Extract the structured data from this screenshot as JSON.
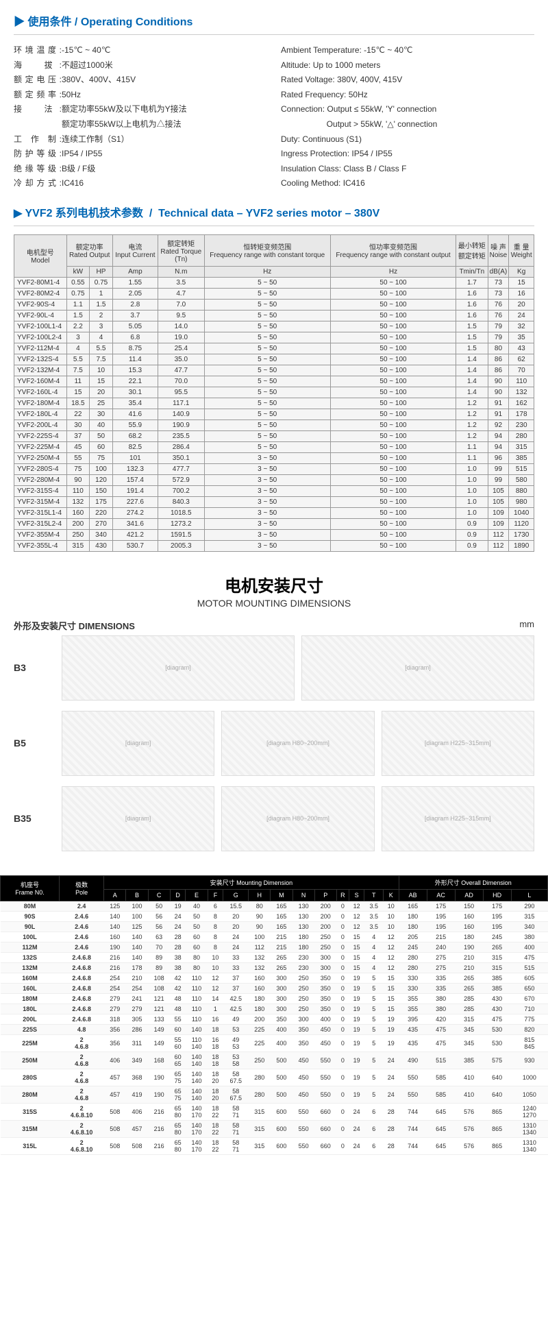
{
  "operating": {
    "title_cn": "使用条件",
    "title_en": "Operating Conditions",
    "rows_cn": [
      {
        "label": "环境温度:",
        "value": "-15℃ ~ 40℃"
      },
      {
        "label": "海　拔:",
        "value": "不超过1000米"
      },
      {
        "label": "额定电压:",
        "value": "380V、400V、415V"
      },
      {
        "label": "额定频率:",
        "value": "50Hz"
      },
      {
        "label": "接　法:",
        "value": "额定功率55kW及以下电机为Y接法"
      },
      {
        "label": "",
        "value": "额定功率55kW以上电机为△接法"
      },
      {
        "label": "工 作 制:",
        "value": "连续工作制（S1）"
      },
      {
        "label": "防护等级:",
        "value": "IP54 / IP55"
      },
      {
        "label": "绝缘等级:",
        "value": "B级 / F级"
      },
      {
        "label": "冷却方式:",
        "value": "IC416"
      }
    ],
    "rows_en": [
      "Ambient Temperature: -15℃ ~ 40℃",
      "Altitude: Up to 1000 meters",
      "Rated Voltage: 380V, 400V, 415V",
      "Rated Frequency: 50Hz",
      "Connection: Output ≤ 55kW, 'Y' connection",
      "                    Output > 55kW, '△' connection",
      "Duty: Continuous (S1)",
      "Ingress Protection: IP54 / IP55",
      "Insulation Class: Class B / Class F",
      "Cooling Method: IC416"
    ]
  },
  "tech": {
    "title_cn": "YVF2 系列电机技术参数",
    "title_en": "Technical data – YVF2 series motor – 380V",
    "headers1": [
      {
        "label": "电机型号\nModel",
        "rowspan": 2,
        "colspan": 1
      },
      {
        "label": "额定功率\nRated Output",
        "colspan": 2
      },
      {
        "label": "电流\nInput Current",
        "colspan": 1,
        "rowspan": 1
      },
      {
        "label": "额定转矩\nRated Torque\n(Tn)",
        "colspan": 1,
        "rowspan": 1
      },
      {
        "label": "恒转矩变频范围\nFrequency range with constant torque",
        "colspan": 1,
        "rowspan": 1
      },
      {
        "label": "恒功率变频范围\nFrequency range with constant output",
        "colspan": 1,
        "rowspan": 1
      },
      {
        "label": "最小转矩\n额定转矩",
        "colspan": 1,
        "rowspan": 1
      },
      {
        "label": "噪 声\nNoise",
        "colspan": 1,
        "rowspan": 1
      },
      {
        "label": "重 量\nWeight",
        "colspan": 1,
        "rowspan": 1
      }
    ],
    "headers2": [
      "kW",
      "HP",
      "Amp",
      "N.m",
      "Hz",
      "Hz",
      "Tmin/Tn",
      "dB(A)",
      "Kg"
    ],
    "rows": [
      [
        "YVF2-80M1-4",
        "0.55",
        "0.75",
        "1.55",
        "3.5",
        "5 ~ 50",
        "50 ~ 100",
        "1.7",
        "73",
        "15"
      ],
      [
        "YVF2-80M2-4",
        "0.75",
        "1",
        "2.05",
        "4.7",
        "5 ~ 50",
        "50 ~ 100",
        "1.6",
        "73",
        "16"
      ],
      [
        "YVF2-90S-4",
        "1.1",
        "1.5",
        "2.8",
        "7.0",
        "5 ~ 50",
        "50 ~ 100",
        "1.6",
        "76",
        "20"
      ],
      [
        "YVF2-90L-4",
        "1.5",
        "2",
        "3.7",
        "9.5",
        "5 ~ 50",
        "50 ~ 100",
        "1.6",
        "76",
        "24"
      ],
      [
        "YVF2-100L1-4",
        "2.2",
        "3",
        "5.05",
        "14.0",
        "5 ~ 50",
        "50 ~ 100",
        "1.5",
        "79",
        "32"
      ],
      [
        "YVF2-100L2-4",
        "3",
        "4",
        "6.8",
        "19.0",
        "5 ~ 50",
        "50 ~ 100",
        "1.5",
        "79",
        "35"
      ],
      [
        "YVF2-112M-4",
        "4",
        "5.5",
        "8.75",
        "25.4",
        "5 ~ 50",
        "50 ~ 100",
        "1.5",
        "80",
        "43"
      ],
      [
        "YVF2-132S-4",
        "5.5",
        "7.5",
        "11.4",
        "35.0",
        "5 ~ 50",
        "50 ~ 100",
        "1.4",
        "86",
        "62"
      ],
      [
        "YVF2-132M-4",
        "7.5",
        "10",
        "15.3",
        "47.7",
        "5 ~ 50",
        "50 ~ 100",
        "1.4",
        "86",
        "70"
      ],
      [
        "YVF2-160M-4",
        "11",
        "15",
        "22.1",
        "70.0",
        "5 ~ 50",
        "50 ~ 100",
        "1.4",
        "90",
        "110"
      ],
      [
        "YVF2-160L-4",
        "15",
        "20",
        "30.1",
        "95.5",
        "5 ~ 50",
        "50 ~ 100",
        "1.4",
        "90",
        "132"
      ],
      [
        "YVF2-180M-4",
        "18.5",
        "25",
        "35.4",
        "117.1",
        "5 ~ 50",
        "50 ~ 100",
        "1.2",
        "91",
        "162"
      ],
      [
        "YVF2-180L-4",
        "22",
        "30",
        "41.6",
        "140.9",
        "5 ~ 50",
        "50 ~ 100",
        "1.2",
        "91",
        "178"
      ],
      [
        "YVF2-200L-4",
        "30",
        "40",
        "55.9",
        "190.9",
        "5 ~ 50",
        "50 ~ 100",
        "1.2",
        "92",
        "230"
      ],
      [
        "YVF2-225S-4",
        "37",
        "50",
        "68.2",
        "235.5",
        "5 ~ 50",
        "50 ~ 100",
        "1.2",
        "94",
        "280"
      ],
      [
        "YVF2-225M-4",
        "45",
        "60",
        "82.5",
        "286.4",
        "5 ~ 50",
        "50 ~ 100",
        "1.1",
        "94",
        "315"
      ],
      [
        "YVF2-250M-4",
        "55",
        "75",
        "101",
        "350.1",
        "3 ~ 50",
        "50 ~ 100",
        "1.1",
        "96",
        "385"
      ],
      [
        "YVF2-280S-4",
        "75",
        "100",
        "132.3",
        "477.7",
        "3 ~ 50",
        "50 ~ 100",
        "1.0",
        "99",
        "515"
      ],
      [
        "YVF2-280M-4",
        "90",
        "120",
        "157.4",
        "572.9",
        "3 ~ 50",
        "50 ~ 100",
        "1.0",
        "99",
        "580"
      ],
      [
        "YVF2-315S-4",
        "110",
        "150",
        "191.4",
        "700.2",
        "3 ~ 50",
        "50 ~ 100",
        "1.0",
        "105",
        "880"
      ],
      [
        "YVF2-315M-4",
        "132",
        "175",
        "227.6",
        "840.3",
        "3 ~ 50",
        "50 ~ 100",
        "1.0",
        "105",
        "980"
      ],
      [
        "YVF2-315L1-4",
        "160",
        "220",
        "274.2",
        "1018.5",
        "3 ~ 50",
        "50 ~ 100",
        "1.0",
        "109",
        "1040"
      ],
      [
        "YVF2-315L2-4",
        "200",
        "270",
        "341.6",
        "1273.2",
        "3 ~ 50",
        "50 ~ 100",
        "0.9",
        "109",
        "1120"
      ],
      [
        "YVF2-355M-4",
        "250",
        "340",
        "421.2",
        "1591.5",
        "3 ~ 50",
        "50 ~ 100",
        "0.9",
        "112",
        "1730"
      ],
      [
        "YVF2-355L-4",
        "315",
        "430",
        "530.7",
        "2005.3",
        "3 ~ 50",
        "50 ~ 100",
        "0.9",
        "112",
        "1890"
      ]
    ]
  },
  "dim": {
    "title_cn": "电机安装尺寸",
    "title_en": "MOTOR MOUNTING DIMENSIONS",
    "header_cn": "外形及安装尺寸 DIMENSIONS",
    "unit": "mm",
    "labels": [
      "B3",
      "B5",
      "B35"
    ],
    "diag_captions": [
      "H80~200mm",
      "H225~315mm"
    ],
    "head_groups": [
      {
        "label": "机座号\nFrame N0.",
        "colspan": 1
      },
      {
        "label": "极数\nPole",
        "colspan": 1
      },
      {
        "label": "安装尺寸 Mounting Dimension",
        "colspan": 15
      },
      {
        "label": "外形尺寸 Overall Dimension",
        "colspan": 5
      }
    ],
    "cols": [
      "A",
      "B",
      "C",
      "D",
      "E",
      "F",
      "G",
      "H",
      "M",
      "N",
      "P",
      "R",
      "S",
      "T",
      "K",
      "AB",
      "AC",
      "AD",
      "HD",
      "L"
    ],
    "rows": [
      [
        "80M",
        "2.4",
        "125",
        "100",
        "50",
        "19",
        "40",
        "6",
        "15.5",
        "80",
        "165",
        "130",
        "200",
        "0",
        "12",
        "3.5",
        "10",
        "165",
        "175",
        "150",
        "175",
        "290"
      ],
      [
        "90S",
        "2.4.6",
        "140",
        "100",
        "56",
        "24",
        "50",
        "8",
        "20",
        "90",
        "165",
        "130",
        "200",
        "0",
        "12",
        "3.5",
        "10",
        "180",
        "195",
        "160",
        "195",
        "315"
      ],
      [
        "90L",
        "2.4.6",
        "140",
        "125",
        "56",
        "24",
        "50",
        "8",
        "20",
        "90",
        "165",
        "130",
        "200",
        "0",
        "12",
        "3.5",
        "10",
        "180",
        "195",
        "160",
        "195",
        "340"
      ],
      [
        "100L",
        "2.4.6",
        "160",
        "140",
        "63",
        "28",
        "60",
        "8",
        "24",
        "100",
        "215",
        "180",
        "250",
        "0",
        "15",
        "4",
        "12",
        "205",
        "215",
        "180",
        "245",
        "380"
      ],
      [
        "112M",
        "2.4.6",
        "190",
        "140",
        "70",
        "28",
        "60",
        "8",
        "24",
        "112",
        "215",
        "180",
        "250",
        "0",
        "15",
        "4",
        "12",
        "245",
        "240",
        "190",
        "265",
        "400"
      ],
      [
        "132S",
        "2.4.6.8",
        "216",
        "140",
        "89",
        "38",
        "80",
        "10",
        "33",
        "132",
        "265",
        "230",
        "300",
        "0",
        "15",
        "4",
        "12",
        "280",
        "275",
        "210",
        "315",
        "475"
      ],
      [
        "132M",
        "2.4.6.8",
        "216",
        "178",
        "89",
        "38",
        "80",
        "10",
        "33",
        "132",
        "265",
        "230",
        "300",
        "0",
        "15",
        "4",
        "12",
        "280",
        "275",
        "210",
        "315",
        "515"
      ],
      [
        "160M",
        "2.4.6.8",
        "254",
        "210",
        "108",
        "42",
        "110",
        "12",
        "37",
        "160",
        "300",
        "250",
        "350",
        "0",
        "19",
        "5",
        "15",
        "330",
        "335",
        "265",
        "385",
        "605"
      ],
      [
        "160L",
        "2.4.6.8",
        "254",
        "254",
        "108",
        "42",
        "110",
        "12",
        "37",
        "160",
        "300",
        "250",
        "350",
        "0",
        "19",
        "5",
        "15",
        "330",
        "335",
        "265",
        "385",
        "650"
      ],
      [
        "180M",
        "2.4.6.8",
        "279",
        "241",
        "121",
        "48",
        "110",
        "14",
        "42.5",
        "180",
        "300",
        "250",
        "350",
        "0",
        "19",
        "5",
        "15",
        "355",
        "380",
        "285",
        "430",
        "670"
      ],
      [
        "180L",
        "2.4.6.8",
        "279",
        "279",
        "121",
        "48",
        "110",
        "1",
        "42.5",
        "180",
        "300",
        "250",
        "350",
        "0",
        "19",
        "5",
        "15",
        "355",
        "380",
        "285",
        "430",
        "710"
      ],
      [
        "200L",
        "2.4.6.8",
        "318",
        "305",
        "133",
        "55",
        "110",
        "16",
        "49",
        "200",
        "350",
        "300",
        "400",
        "0",
        "19",
        "5",
        "19",
        "395",
        "420",
        "315",
        "475",
        "775"
      ],
      [
        "225S",
        "4.8",
        "356",
        "286",
        "149",
        "60",
        "140",
        "18",
        "53",
        "225",
        "400",
        "350",
        "450",
        "0",
        "19",
        "5",
        "19",
        "435",
        "475",
        "345",
        "530",
        "820"
      ],
      [
        "225M",
        "2\n4.6.8",
        "356",
        "311",
        "149",
        "55\n60",
        "110\n140",
        "16\n18",
        "49\n53",
        "225",
        "400",
        "350",
        "450",
        "0",
        "19",
        "5",
        "19",
        "435",
        "475",
        "345",
        "530",
        "815\n845"
      ],
      [
        "250M",
        "2\n4.6.8",
        "406",
        "349",
        "168",
        "60\n65",
        "140\n140",
        "18\n18",
        "53\n58",
        "250",
        "500",
        "450",
        "550",
        "0",
        "19",
        "5",
        "24",
        "490",
        "515",
        "385",
        "575",
        "930"
      ],
      [
        "280S",
        "2\n4.6.8",
        "457",
        "368",
        "190",
        "65\n75",
        "140\n140",
        "18\n20",
        "58\n67.5",
        "280",
        "500",
        "450",
        "550",
        "0",
        "19",
        "5",
        "24",
        "550",
        "585",
        "410",
        "640",
        "1000"
      ],
      [
        "280M",
        "2\n4.6.8",
        "457",
        "419",
        "190",
        "65\n75",
        "140\n140",
        "18\n20",
        "58\n67.5",
        "280",
        "500",
        "450",
        "550",
        "0",
        "19",
        "5",
        "24",
        "550",
        "585",
        "410",
        "640",
        "1050"
      ],
      [
        "315S",
        "2\n4.6.8.10",
        "508",
        "406",
        "216",
        "65\n80",
        "140\n170",
        "18\n22",
        "58\n71",
        "315",
        "600",
        "550",
        "660",
        "0",
        "24",
        "6",
        "28",
        "744",
        "645",
        "576",
        "865",
        "1240\n1270"
      ],
      [
        "315M",
        "2\n4.6.8.10",
        "508",
        "457",
        "216",
        "65\n80",
        "140\n170",
        "18\n22",
        "58\n71",
        "315",
        "600",
        "550",
        "660",
        "0",
        "24",
        "6",
        "28",
        "744",
        "645",
        "576",
        "865",
        "1310\n1340"
      ],
      [
        "315L",
        "2\n4.6.8.10",
        "508",
        "508",
        "216",
        "65\n80",
        "140\n170",
        "18\n22",
        "58\n71",
        "315",
        "600",
        "550",
        "660",
        "0",
        "24",
        "6",
        "28",
        "744",
        "645",
        "576",
        "865",
        "1310\n1340"
      ]
    ]
  }
}
